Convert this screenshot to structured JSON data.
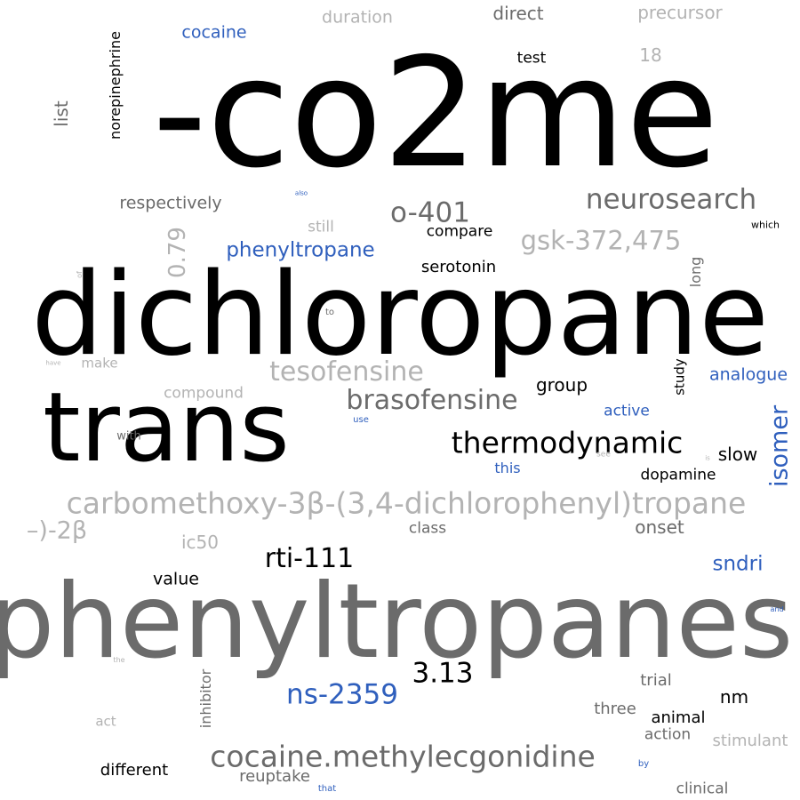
{
  "words": {
    "co2me": "-co2me",
    "dichloropane": "dichloropane",
    "phenyltropanes": "phenyltropanes",
    "trans": "trans",
    "carbomethoxy": "carbomethoxy-3β-(3,4-dichlorophenyl)tropane",
    "minus_2beta": "–)-2β",
    "cocaine_methylecgonidine": "cocaine.methylecgonidine",
    "thermodynamic": "thermodynamic",
    "brasofensine": "brasofensine",
    "tesofensine": "tesofensine",
    "neurosearch": "neurosearch",
    "gsk": "gsk-372,475",
    "o401": "o-401",
    "phenyltropane": "phenyltropane",
    "rti111": "rti-111",
    "ns2359": "ns-2359",
    "n313": "3.13",
    "isomer": "isomer",
    "sndri": "sndri",
    "cocaine": "cocaine",
    "duration": "duration",
    "direct": "direct",
    "precursor": "precursor",
    "test": "test",
    "n18": "18",
    "norepinephrine": "norepinephrine",
    "list": "list",
    "respectively": "respectively",
    "also": "also",
    "still": "still",
    "compare": "compare",
    "which": "which",
    "n079": "0.79",
    "serotonin": "serotonin",
    "long": "long",
    "of": "of",
    "to": "to",
    "make": "make",
    "have": "have",
    "analogue": "analogue",
    "study": "study",
    "compound": "compound",
    "group": "group",
    "active": "active",
    "use": "use",
    "with": "with",
    "see": "see",
    "slow": "slow",
    "this": "this",
    "dopamine": "dopamine",
    "class": "class",
    "onset": "onset",
    "ic50": "ic50",
    "value": "value",
    "and": "and",
    "the": "the",
    "inhibitor": "inhibitor",
    "trial": "trial",
    "nm": "nm",
    "three": "three",
    "animal": "animal",
    "action": "action",
    "act": "act",
    "stimulant": "stimulant",
    "by": "by",
    "different": "different",
    "reuptake": "reuptake",
    "that": "that",
    "clinical": "clinical",
    "is": "is"
  },
  "colors": {
    "black": "#000000",
    "dark_gray": "#6b6b6b",
    "light_gray": "#b3b3b3",
    "blue": "#2f5fbd",
    "background": "#ffffff"
  }
}
